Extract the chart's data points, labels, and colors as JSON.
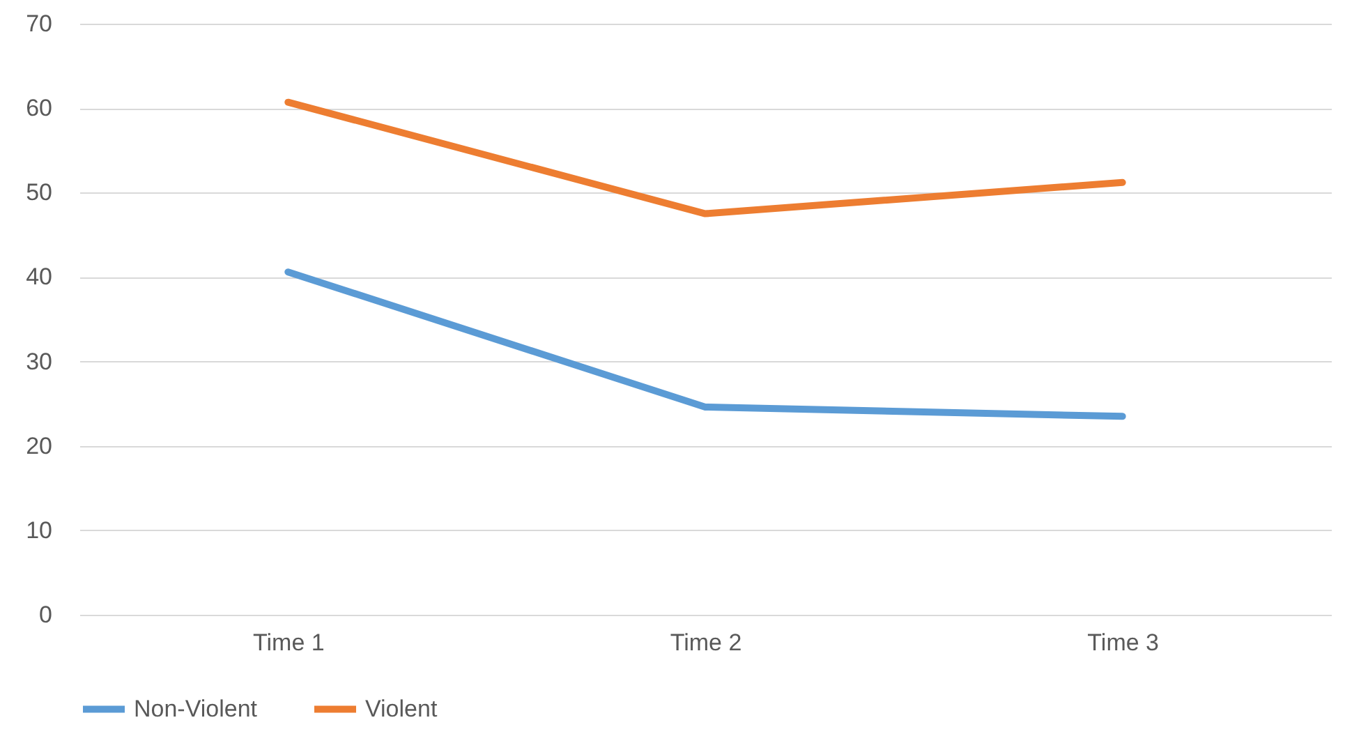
{
  "chart_data": {
    "type": "line",
    "categories": [
      "Time 1",
      "Time 2",
      "Time 3"
    ],
    "series": [
      {
        "name": "Non-Violent",
        "color": "#5b9bd5",
        "values": [
          40.6,
          24.6,
          23.5
        ]
      },
      {
        "name": "Violent",
        "color": "#ed7d31",
        "values": [
          60.7,
          47.5,
          51.2
        ]
      }
    ],
    "ylim": [
      0,
      70
    ],
    "yticks": [
      0,
      10,
      20,
      30,
      40,
      50,
      60,
      70
    ],
    "grid": "y",
    "legend": "bottom"
  }
}
